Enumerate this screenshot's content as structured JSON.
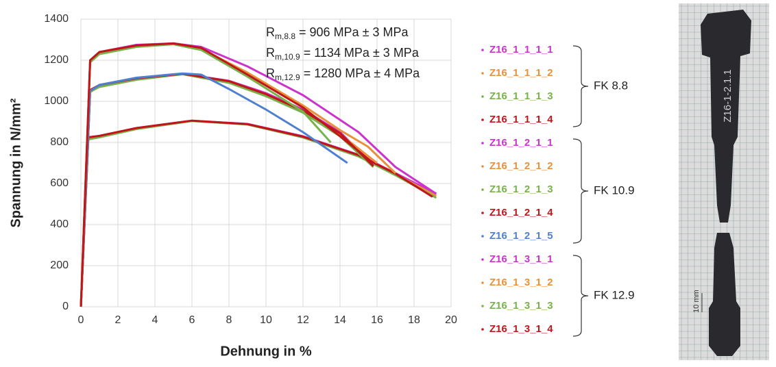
{
  "chart_data": {
    "type": "line",
    "x_label": "Dehnung in %",
    "y_label": "Spannung in N/mm²",
    "xlim": [
      0,
      20
    ],
    "ylim": [
      0,
      1400
    ],
    "xticks": [
      0,
      2,
      4,
      6,
      8,
      10,
      12,
      14,
      16,
      18,
      20
    ],
    "yticks": [
      0,
      200,
      400,
      600,
      800,
      1000,
      1200,
      1400
    ],
    "grid": true,
    "annotations": [
      {
        "symbol": "R",
        "subscript": "m,8.8",
        "text": " = 906 MPa ± 3 MPa"
      },
      {
        "symbol": "R",
        "subscript": "m,10.9",
        "text": " = 1134 MPa ± 3 MPa"
      },
      {
        "symbol": "R",
        "subscript": "m,12.9",
        "text": " = 1280 MPa ± 4 MPa"
      }
    ],
    "legend_groups": [
      {
        "label": "FK 8.8",
        "series": [
          0,
          1,
          2,
          3
        ]
      },
      {
        "label": "FK 10.9",
        "series": [
          4,
          5,
          6,
          7,
          8
        ]
      },
      {
        "label": "FK 12.9",
        "series": [
          9,
          10,
          11,
          12
        ]
      }
    ],
    "series": [
      {
        "name": "Z16_1_1_1_1",
        "color": "#cc33cc",
        "x": [
          0,
          0.4,
          1,
          3,
          6,
          9,
          12,
          15,
          17,
          19.2
        ],
        "values": [
          0,
          820,
          830,
          870,
          906,
          890,
          830,
          740,
          650,
          550
        ]
      },
      {
        "name": "Z16_1_1_1_2",
        "color": "#e8903a",
        "x": [
          0,
          0.4,
          1,
          3,
          6,
          9,
          12,
          15,
          17,
          19.2
        ],
        "values": [
          0,
          820,
          828,
          868,
          905,
          888,
          826,
          735,
          645,
          540
        ]
      },
      {
        "name": "Z16_1_1_1_3",
        "color": "#77b24a",
        "x": [
          0,
          0.4,
          1,
          3,
          6,
          9,
          12,
          15,
          17,
          19.2
        ],
        "values": [
          0,
          815,
          825,
          865,
          904,
          887,
          824,
          732,
          640,
          530
        ]
      },
      {
        "name": "Z16_1_1_1_4",
        "color": "#c0161a",
        "x": [
          0,
          0.4,
          1,
          3,
          6,
          9,
          12,
          15,
          17,
          19
        ],
        "values": [
          0,
          825,
          832,
          870,
          906,
          889,
          828,
          738,
          648,
          535
        ]
      },
      {
        "name": "Z16_1_2_1_1",
        "color": "#cc33cc",
        "x": [
          0,
          0.5,
          1,
          3,
          5.5,
          8,
          10,
          12,
          14,
          15.8
        ],
        "values": [
          0,
          1050,
          1075,
          1110,
          1134,
          1100,
          1040,
          960,
          850,
          690
        ]
      },
      {
        "name": "Z16_1_2_1_2",
        "color": "#e8903a",
        "x": [
          0,
          0.5,
          1,
          3,
          5.5,
          8,
          10,
          12,
          14,
          16
        ],
        "values": [
          0,
          1045,
          1072,
          1108,
          1133,
          1095,
          1030,
          950,
          840,
          700
        ]
      },
      {
        "name": "Z16_1_2_1_3",
        "color": "#77b24a",
        "x": [
          0,
          0.5,
          1,
          3,
          5.5,
          8,
          10,
          12,
          14,
          15.8
        ],
        "values": [
          0,
          1048,
          1070,
          1105,
          1132,
          1090,
          1025,
          945,
          830,
          680
        ]
      },
      {
        "name": "Z16_1_2_1_4",
        "color": "#c0161a",
        "x": [
          0,
          0.5,
          1,
          3,
          5.5,
          8,
          10,
          12,
          14,
          15.8
        ],
        "values": [
          0,
          1055,
          1080,
          1112,
          1134,
          1098,
          1035,
          955,
          845,
          685
        ]
      },
      {
        "name": "Z16_1_2_1_5",
        "color": "#4f7fcf",
        "x": [
          0,
          0.5,
          1,
          3,
          5.5,
          6.5,
          8,
          10,
          12,
          14.4
        ],
        "values": [
          0,
          1050,
          1080,
          1115,
          1136,
          1130,
          1060,
          960,
          850,
          700
        ]
      },
      {
        "name": "Z16_1_3_1_1",
        "color": "#cc33cc",
        "x": [
          0,
          0.5,
          1,
          3,
          5,
          6.5,
          9,
          12,
          15,
          17,
          19.2
        ],
        "values": [
          0,
          1200,
          1240,
          1275,
          1282,
          1265,
          1170,
          1030,
          850,
          680,
          550
        ]
      },
      {
        "name": "Z16_1_3_1_2",
        "color": "#e8903a",
        "x": [
          0,
          0.5,
          1,
          3,
          5,
          6.5,
          9,
          12,
          14,
          15.5,
          17
        ],
        "values": [
          0,
          1195,
          1235,
          1270,
          1280,
          1255,
          1140,
          980,
          860,
          780,
          650
        ]
      },
      {
        "name": "Z16_1_3_1_3",
        "color": "#77b24a",
        "x": [
          0,
          0.5,
          1,
          3,
          5,
          6.5,
          9,
          12,
          13.5
        ],
        "values": [
          0,
          1190,
          1230,
          1265,
          1278,
          1250,
          1120,
          950,
          800
        ]
      },
      {
        "name": "Z16_1_3_1_4",
        "color": "#c0161a",
        "x": [
          0,
          0.5,
          1,
          3,
          5,
          6.5,
          9,
          12,
          14,
          15.8
        ],
        "values": [
          0,
          1200,
          1240,
          1272,
          1282,
          1260,
          1130,
          970,
          830,
          700
        ]
      }
    ]
  },
  "photo": {
    "bolt_label": "Z16-1-2.1.1",
    "scale_label": "10 mm"
  }
}
